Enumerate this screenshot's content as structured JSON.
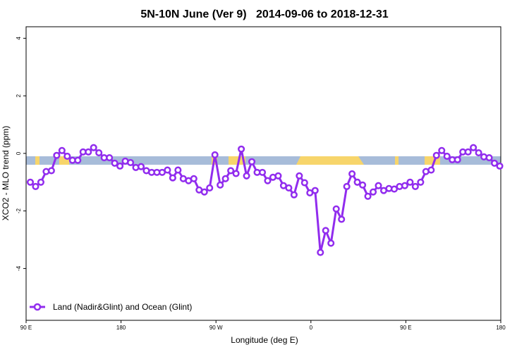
{
  "chart_data": {
    "type": "line",
    "title": "5N-10N June (Ver 9)   2014-09-06 to 2018-12-31",
    "xlabel": "Longitude (deg E)",
    "ylabel": "XCO2 - MLO trend (ppm)",
    "xlim": [
      90,
      540
    ],
    "ylim": [
      -5.8,
      4.4
    ],
    "xticks": [
      {
        "value": 90,
        "label": "90 E"
      },
      {
        "value": 180,
        "label": "180"
      },
      {
        "value": 270,
        "label": "90 W"
      },
      {
        "value": 360,
        "label": "0"
      },
      {
        "value": 450,
        "label": "90 E"
      },
      {
        "value": 540,
        "label": "180"
      }
    ],
    "yticks": [
      -4,
      -2,
      0,
      2,
      4
    ],
    "x": [
      94,
      99,
      104,
      109,
      114,
      119,
      124,
      129,
      134,
      139,
      144,
      149,
      154,
      159,
      164,
      169,
      174,
      179,
      184,
      189,
      194,
      199,
      204,
      209,
      214,
      219,
      224,
      229,
      234,
      239,
      244,
      249,
      254,
      259,
      264,
      269,
      274,
      279,
      284,
      289,
      294,
      299,
      304,
      309,
      314,
      319,
      324,
      329,
      334,
      339,
      344,
      349,
      354,
      359,
      364,
      369,
      374,
      379,
      384,
      389,
      394,
      399,
      404,
      409,
      414,
      419,
      424,
      429,
      434,
      439,
      444,
      449,
      454,
      459,
      464,
      469,
      474,
      479,
      484,
      489,
      494,
      499,
      504,
      509,
      514,
      519,
      524,
      529,
      534,
      539
    ],
    "series": [
      {
        "name": "Land (Nadir&Glint) and Ocean (Glint)",
        "color": "#912cee",
        "values": [
          -1.0,
          -1.15,
          -1.0,
          -0.63,
          -0.6,
          -0.07,
          0.1,
          -0.1,
          -0.24,
          -0.24,
          0.05,
          0.05,
          0.2,
          0.02,
          -0.15,
          -0.15,
          -0.34,
          -0.44,
          -0.27,
          -0.32,
          -0.49,
          -0.46,
          -0.6,
          -0.66,
          -0.66,
          -0.66,
          -0.58,
          -0.85,
          -0.58,
          -0.88,
          -0.95,
          -0.88,
          -1.27,
          -1.34,
          -1.2,
          -0.05,
          -1.1,
          -0.88,
          -0.6,
          -0.7,
          0.15,
          -0.78,
          -0.29,
          -0.66,
          -0.66,
          -0.95,
          -0.83,
          -0.78,
          -1.12,
          -1.2,
          -1.44,
          -0.78,
          -1.02,
          -1.37,
          -1.29,
          -3.44,
          -2.68,
          -3.12,
          -1.93,
          -2.29,
          -1.15,
          -0.71,
          -1.0,
          -1.1,
          -1.49,
          -1.34,
          -1.12,
          -1.29,
          -1.22,
          -1.24,
          -1.15,
          -1.12,
          -1.0,
          -1.15,
          -1.0,
          -0.63,
          -0.58,
          -0.07,
          0.1,
          -0.1,
          -0.22,
          -0.22,
          0.05,
          0.05,
          0.2,
          0.02,
          -0.12,
          -0.15,
          -0.34,
          -0.44
        ]
      }
    ]
  }
}
